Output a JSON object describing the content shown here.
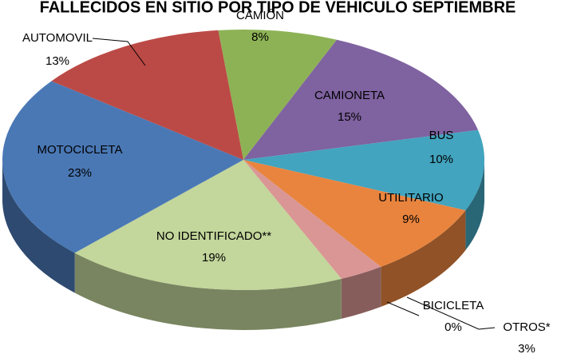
{
  "chart_data": {
    "type": "pie3d",
    "title": "FALLECIDOS EN SITIO POR TIPO DE VEHICULO SEPTIEMBRE",
    "categories": [
      "CAMIÓN",
      "CAMIONETA",
      "BUS",
      "UTILITARIO",
      "OTROS*",
      "BICICLETA",
      "NO IDENTIFICADO**",
      "MOTOCICLETA",
      "AUTOMOVIL"
    ],
    "values": [
      8,
      15,
      10,
      9,
      3,
      0,
      19,
      23,
      13
    ],
    "value_labels": [
      "8%",
      "15%",
      "10%",
      "9%",
      "3%",
      "0%",
      "19%",
      "23%",
      "13%"
    ],
    "colors": [
      "#8db255",
      "#7f62a0",
      "#42a4bf",
      "#e9843e",
      "#d99694",
      "#cf8f8d",
      "#c3d69b",
      "#4a78b5",
      "#bb4a46"
    ]
  }
}
